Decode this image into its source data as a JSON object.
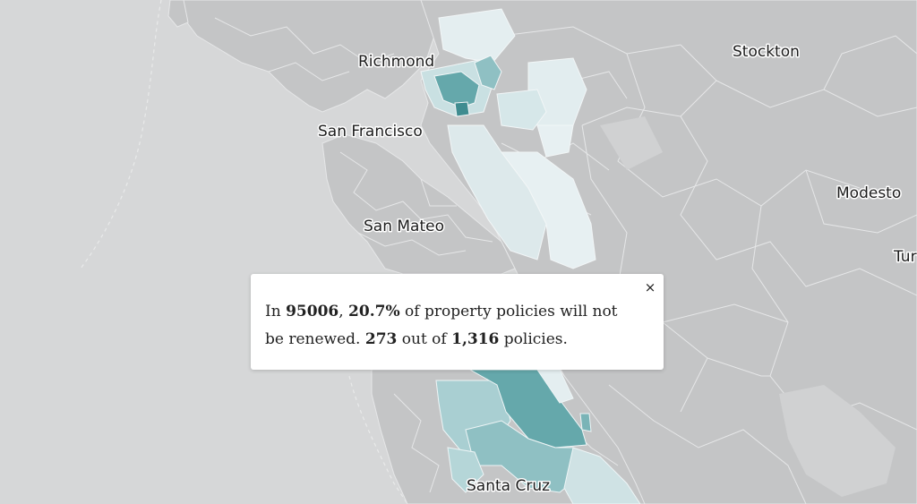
{
  "map": {
    "city_labels": [
      {
        "id": "richmond",
        "name": "Richmond"
      },
      {
        "id": "stockton",
        "name": "Stockton"
      },
      {
        "id": "san-francisco",
        "name": "San Francisco"
      },
      {
        "id": "modesto",
        "name": "Modesto"
      },
      {
        "id": "san-mateo",
        "name": "San Mateo"
      },
      {
        "id": "turlock",
        "name": "Tur"
      },
      {
        "id": "santa-cruz",
        "name": "Santa Cruz"
      }
    ],
    "colors": {
      "water": "#d6d7d8",
      "land": "#c4c5c6",
      "boundary": "#e6e7e8",
      "choropleth_low": "#e7f0f2",
      "choropleth_mid": "#a9cfd2",
      "choropleth_high": "#65a8ab"
    }
  },
  "popup": {
    "text_in": "In ",
    "zip": "95006",
    "sep": ", ",
    "percent": "20.7%",
    "text_middle": " of property policies will not be renewed. ",
    "nonrenewed": "273",
    "text_out_of": " out of ",
    "total": "1,316",
    "text_end": " policies.",
    "close_label": "×"
  }
}
